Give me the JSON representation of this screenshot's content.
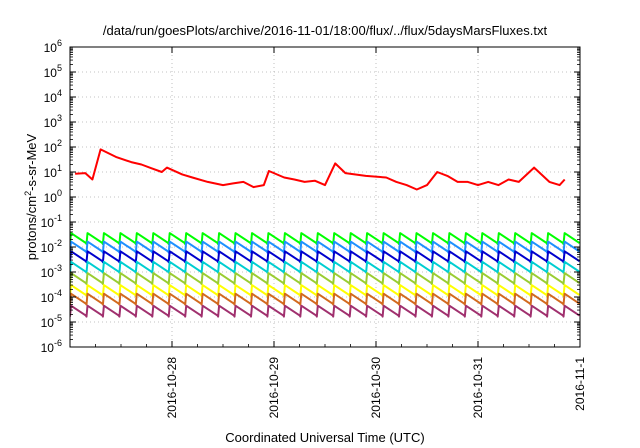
{
  "chart_data": {
    "type": "line",
    "title": "/data/run/goesPlots/archive/2016-11-01/18:00/flux/../flux/5daysMarsFluxes.txt",
    "xlabel": "Coordinated Universal Time (UTC)",
    "ylabel": "protons/cm2-s-sr-MeV",
    "ylabel_parts": {
      "prefix": "protons/cm",
      "superscript": "2",
      "suffix": "-s-sr-MeV"
    },
    "yscale": "log",
    "ylim_exponents": [
      -6,
      6
    ],
    "ytick_base": "10",
    "ytick_exponents": [
      "6",
      "5",
      "4",
      "3",
      "2",
      "1",
      "0",
      "-1",
      "-2",
      "-3",
      "-4",
      "-5",
      "-6"
    ],
    "xlim_days": [
      "2016-10-27",
      "2016-11-01"
    ],
    "x_ticks": [
      "2016-10-28",
      "2016-10-29",
      "2016-10-30",
      "2016-10-31",
      "2016-11-1"
    ],
    "grid": true,
    "legend": "none",
    "series": [
      {
        "color": "#ff0000",
        "x_days": [
          0.05,
          0.15,
          0.22,
          0.3,
          0.45,
          0.6,
          0.7,
          0.8,
          0.9,
          0.95,
          1.1,
          1.2,
          1.35,
          1.5,
          1.6,
          1.7,
          1.8,
          1.9,
          1.95,
          2.1,
          2.2,
          2.3,
          2.4,
          2.5,
          2.6,
          2.7,
          2.9,
          3.1,
          3.2,
          3.3,
          3.4,
          3.5,
          3.6,
          3.7,
          3.8,
          3.9,
          4.0,
          4.1,
          4.2,
          4.3,
          4.4,
          4.55,
          4.7,
          4.8,
          4.85
        ],
        "values": [
          8.5,
          9.0,
          5.0,
          80,
          40,
          25,
          20,
          14,
          10,
          15,
          8,
          6,
          4,
          3,
          3.5,
          4,
          2.5,
          3,
          11,
          6,
          5,
          4,
          4.5,
          3,
          22,
          9,
          7,
          6,
          4,
          3,
          2,
          3,
          10,
          7,
          4,
          4,
          3,
          4,
          3,
          5,
          4,
          15,
          4,
          3,
          5
        ]
      },
      {
        "color": "#00ff00",
        "level": 0.024
      },
      {
        "color": "#1e90ff",
        "level": 0.011
      },
      {
        "color": "#0000cd",
        "level": 0.0045
      },
      {
        "color": "#00ced1",
        "level": 0.0017
      },
      {
        "color": "#9acd32",
        "level": 0.0006
      },
      {
        "color": "#ffff00",
        "level": 0.0002
      },
      {
        "color": "#d2691e",
        "level": 9e-05
      },
      {
        "color": "#a0306e",
        "level": 3e-05
      }
    ]
  }
}
